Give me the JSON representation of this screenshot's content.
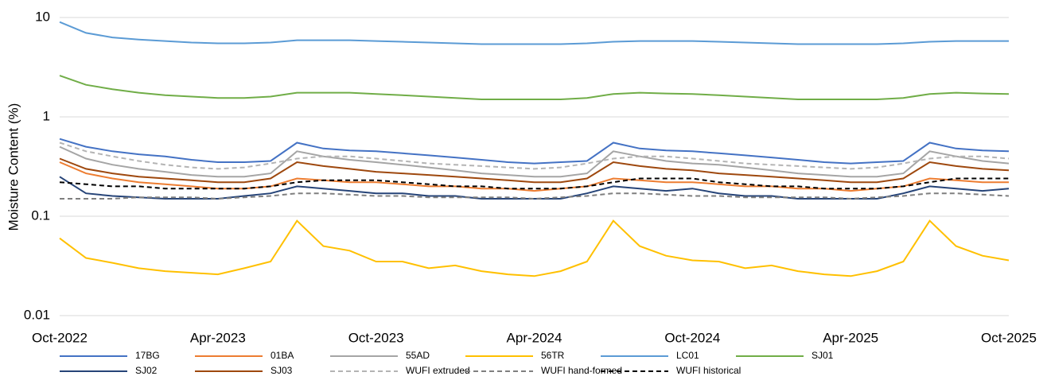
{
  "chart_data": {
    "type": "line",
    "y_label": "Moisture Content (%)",
    "log_scale": true,
    "grid": true,
    "legend": "bottom",
    "x": [
      "2022-10",
      "2022-11",
      "2022-12",
      "2023-01",
      "2023-02",
      "2023-03",
      "2023-04",
      "2023-05",
      "2023-06",
      "2023-07",
      "2023-08",
      "2023-09",
      "2023-10",
      "2023-11",
      "2023-12",
      "2024-01",
      "2024-02",
      "2024-03",
      "2024-04",
      "2024-05",
      "2024-06",
      "2024-07",
      "2024-08",
      "2024-09",
      "2024-10",
      "2024-11",
      "2024-12",
      "2025-01",
      "2025-02",
      "2025-03",
      "2025-04",
      "2025-05",
      "2025-06",
      "2025-07",
      "2025-08",
      "2025-09",
      "2025-10"
    ],
    "xlim": [
      "2022-10",
      "2025-10"
    ],
    "xticks": [
      {
        "value": "2022-10",
        "label": "Oct-2022"
      },
      {
        "value": "2023-04",
        "label": "Apr-2023"
      },
      {
        "value": "2023-10",
        "label": "Oct-2023"
      },
      {
        "value": "2024-04",
        "label": "Apr-2024"
      },
      {
        "value": "2024-10",
        "label": "Oct-2024"
      },
      {
        "value": "2025-04",
        "label": "Apr-2025"
      },
      {
        "value": "2025-10",
        "label": "Oct-2025"
      }
    ],
    "ylim": [
      0.01,
      10
    ],
    "yticks": [
      0.01,
      0.1,
      1,
      10
    ],
    "series": [
      {
        "name": "17BG",
        "color": "#4472c4",
        "dash": "solid",
        "values": [
          0.6,
          0.5,
          0.45,
          0.42,
          0.4,
          0.37,
          0.35,
          0.35,
          0.36,
          0.55,
          0.48,
          0.46,
          0.45,
          0.43,
          0.41,
          0.39,
          0.37,
          0.35,
          0.34,
          0.35,
          0.36,
          0.55,
          0.48,
          0.46,
          0.45,
          0.43,
          0.41,
          0.39,
          0.37,
          0.35,
          0.34,
          0.35,
          0.36,
          0.55,
          0.48,
          0.46,
          0.45
        ]
      },
      {
        "name": "01BA",
        "color": "#ed7d31",
        "dash": "solid",
        "values": [
          0.35,
          0.27,
          0.24,
          0.22,
          0.21,
          0.2,
          0.19,
          0.19,
          0.2,
          0.24,
          0.23,
          0.22,
          0.22,
          0.21,
          0.2,
          0.2,
          0.19,
          0.19,
          0.18,
          0.19,
          0.2,
          0.24,
          0.23,
          0.22,
          0.22,
          0.21,
          0.2,
          0.2,
          0.19,
          0.19,
          0.18,
          0.19,
          0.2,
          0.24,
          0.23,
          0.22,
          0.22
        ]
      },
      {
        "name": "55AD",
        "color": "#a5a5a5",
        "dash": "solid",
        "values": [
          0.5,
          0.38,
          0.33,
          0.3,
          0.28,
          0.26,
          0.25,
          0.25,
          0.27,
          0.45,
          0.4,
          0.37,
          0.35,
          0.33,
          0.31,
          0.29,
          0.27,
          0.26,
          0.25,
          0.25,
          0.27,
          0.45,
          0.4,
          0.36,
          0.34,
          0.33,
          0.31,
          0.29,
          0.27,
          0.26,
          0.25,
          0.25,
          0.27,
          0.45,
          0.4,
          0.36,
          0.34
        ]
      },
      {
        "name": "56TR",
        "color": "#ffc000",
        "dash": "solid",
        "values": [
          0.06,
          0.038,
          0.034,
          0.03,
          0.028,
          0.027,
          0.026,
          0.03,
          0.035,
          0.09,
          0.05,
          0.045,
          0.035,
          0.035,
          0.03,
          0.032,
          0.028,
          0.026,
          0.025,
          0.028,
          0.035,
          0.09,
          0.05,
          0.04,
          0.036,
          0.035,
          0.03,
          0.032,
          0.028,
          0.026,
          0.025,
          0.028,
          0.035,
          0.09,
          0.05,
          0.04,
          0.036
        ]
      },
      {
        "name": "LC01",
        "color": "#5b9bd5",
        "dash": "solid",
        "values": [
          9,
          7,
          6.3,
          6,
          5.8,
          5.6,
          5.5,
          5.5,
          5.6,
          5.9,
          5.9,
          5.9,
          5.8,
          5.7,
          5.6,
          5.5,
          5.4,
          5.4,
          5.4,
          5.4,
          5.5,
          5.7,
          5.8,
          5.8,
          5.8,
          5.7,
          5.6,
          5.5,
          5.4,
          5.4,
          5.4,
          5.4,
          5.5,
          5.7,
          5.8,
          5.8,
          5.8
        ]
      },
      {
        "name": "SJ01",
        "color": "#70ad47",
        "dash": "solid",
        "values": [
          2.6,
          2.1,
          1.9,
          1.75,
          1.65,
          1.6,
          1.55,
          1.55,
          1.6,
          1.75,
          1.75,
          1.75,
          1.7,
          1.65,
          1.6,
          1.55,
          1.5,
          1.5,
          1.5,
          1.5,
          1.55,
          1.7,
          1.75,
          1.72,
          1.7,
          1.65,
          1.6,
          1.55,
          1.5,
          1.5,
          1.5,
          1.5,
          1.55,
          1.7,
          1.75,
          1.72,
          1.7
        ]
      },
      {
        "name": "SJ02",
        "color": "#264478",
        "dash": "solid",
        "values": [
          0.25,
          0.17,
          0.16,
          0.155,
          0.15,
          0.15,
          0.15,
          0.16,
          0.17,
          0.2,
          0.19,
          0.18,
          0.17,
          0.17,
          0.16,
          0.16,
          0.15,
          0.15,
          0.15,
          0.15,
          0.17,
          0.2,
          0.19,
          0.18,
          0.19,
          0.17,
          0.16,
          0.16,
          0.15,
          0.15,
          0.15,
          0.15,
          0.17,
          0.2,
          0.19,
          0.18,
          0.19
        ]
      },
      {
        "name": "SJ03",
        "color": "#9e480e",
        "dash": "solid",
        "values": [
          0.38,
          0.3,
          0.27,
          0.25,
          0.24,
          0.23,
          0.22,
          0.22,
          0.24,
          0.35,
          0.32,
          0.3,
          0.28,
          0.27,
          0.26,
          0.25,
          0.24,
          0.23,
          0.22,
          0.22,
          0.24,
          0.35,
          0.32,
          0.3,
          0.29,
          0.27,
          0.26,
          0.25,
          0.24,
          0.23,
          0.22,
          0.22,
          0.24,
          0.35,
          0.32,
          0.3,
          0.29
        ]
      },
      {
        "name": "WUFI extruded",
        "color": "#b4b4b4",
        "dash": "dashed",
        "values": [
          0.55,
          0.45,
          0.4,
          0.36,
          0.33,
          0.31,
          0.3,
          0.31,
          0.34,
          0.38,
          0.4,
          0.4,
          0.38,
          0.36,
          0.34,
          0.33,
          0.32,
          0.31,
          0.3,
          0.31,
          0.34,
          0.38,
          0.4,
          0.4,
          0.38,
          0.36,
          0.34,
          0.33,
          0.32,
          0.31,
          0.3,
          0.31,
          0.34,
          0.38,
          0.4,
          0.4,
          0.38
        ]
      },
      {
        "name": "WUFI hand-formed",
        "color": "#7f7f7f",
        "dash": "dashed",
        "values": [
          0.15,
          0.15,
          0.15,
          0.155,
          0.155,
          0.155,
          0.15,
          0.155,
          0.16,
          0.17,
          0.17,
          0.165,
          0.16,
          0.16,
          0.155,
          0.155,
          0.155,
          0.155,
          0.15,
          0.155,
          0.16,
          0.17,
          0.17,
          0.165,
          0.16,
          0.16,
          0.155,
          0.155,
          0.155,
          0.155,
          0.15,
          0.155,
          0.16,
          0.17,
          0.17,
          0.165,
          0.16
        ]
      },
      {
        "name": "WUFI historical",
        "color": "#000000",
        "dash": "dashed",
        "values": [
          0.22,
          0.21,
          0.2,
          0.2,
          0.19,
          0.19,
          0.19,
          0.19,
          0.2,
          0.22,
          0.23,
          0.23,
          0.23,
          0.22,
          0.21,
          0.2,
          0.2,
          0.19,
          0.19,
          0.19,
          0.2,
          0.22,
          0.24,
          0.24,
          0.24,
          0.22,
          0.21,
          0.2,
          0.2,
          0.19,
          0.19,
          0.19,
          0.2,
          0.22,
          0.24,
          0.24,
          0.24
        ]
      }
    ]
  }
}
